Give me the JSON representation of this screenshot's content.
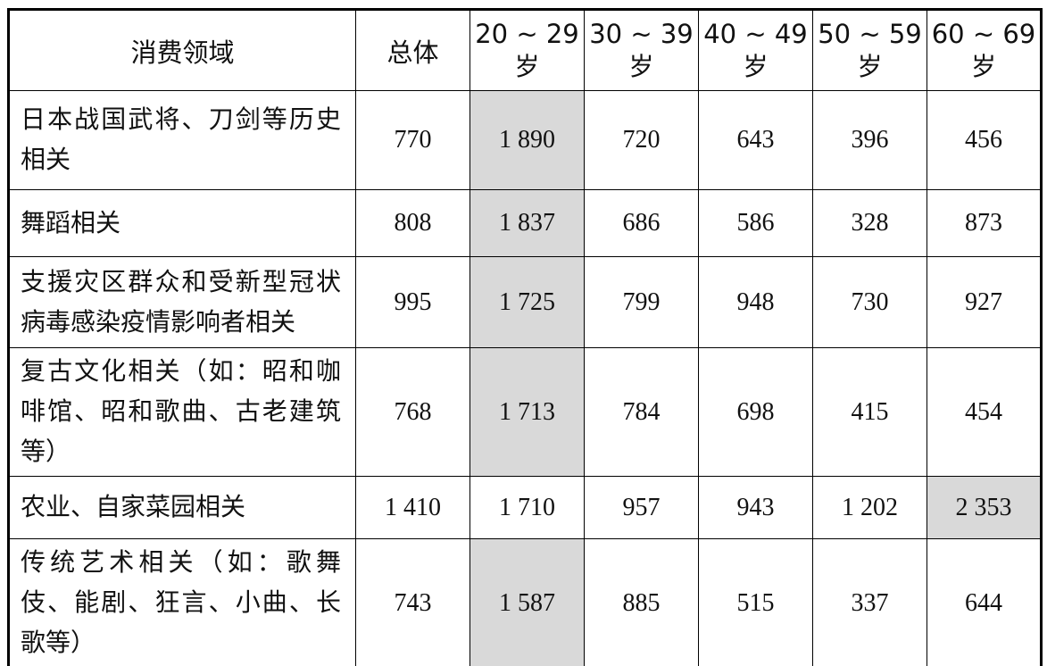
{
  "colors": {
    "highlight_cell": "#d9d9d9",
    "border": "#000000",
    "text": "#111111",
    "background": "#ffffff"
  },
  "table": {
    "category_header": "消费领域",
    "total_header": "总体",
    "age_headers": [
      {
        "range": "20 ~ 29",
        "suffix": "岁"
      },
      {
        "range": "30 ~ 39",
        "suffix": "岁"
      },
      {
        "range": "40 ~ 49",
        "suffix": "岁"
      },
      {
        "range": "50 ~ 59",
        "suffix": "岁"
      },
      {
        "range": "60 ~ 69",
        "suffix": "岁"
      }
    ],
    "rows": [
      {
        "label": "日本战国武将、刀剑等历史相关",
        "values": [
          "770",
          "1 890",
          "720",
          "643",
          "396",
          "456"
        ],
        "highlight": 1
      },
      {
        "label": "舞蹈相关",
        "values": [
          "808",
          "1 837",
          "686",
          "586",
          "328",
          "873"
        ],
        "highlight": 1
      },
      {
        "label": "支援灾区群众和受新型冠状病毒感染疫情影响者相关",
        "values": [
          "995",
          "1 725",
          "799",
          "948",
          "730",
          "927"
        ],
        "highlight": 1
      },
      {
        "label": "复古文化相关（如：昭和咖啡馆、昭和歌曲、古老建筑等）",
        "values": [
          "768",
          "1 713",
          "784",
          "698",
          "415",
          "454"
        ],
        "highlight": 1
      },
      {
        "label": "农业、自家菜园相关",
        "values": [
          "1 410",
          "1 710",
          "957",
          "943",
          "1 202",
          "2 353"
        ],
        "highlight": 5
      },
      {
        "label": "传统艺术相关（如：歌舞伎、能剧、狂言、小曲、长歌等）",
        "values": [
          "743",
          "1 587",
          "885",
          "515",
          "337",
          "644"
        ],
        "highlight": 1
      }
    ]
  }
}
